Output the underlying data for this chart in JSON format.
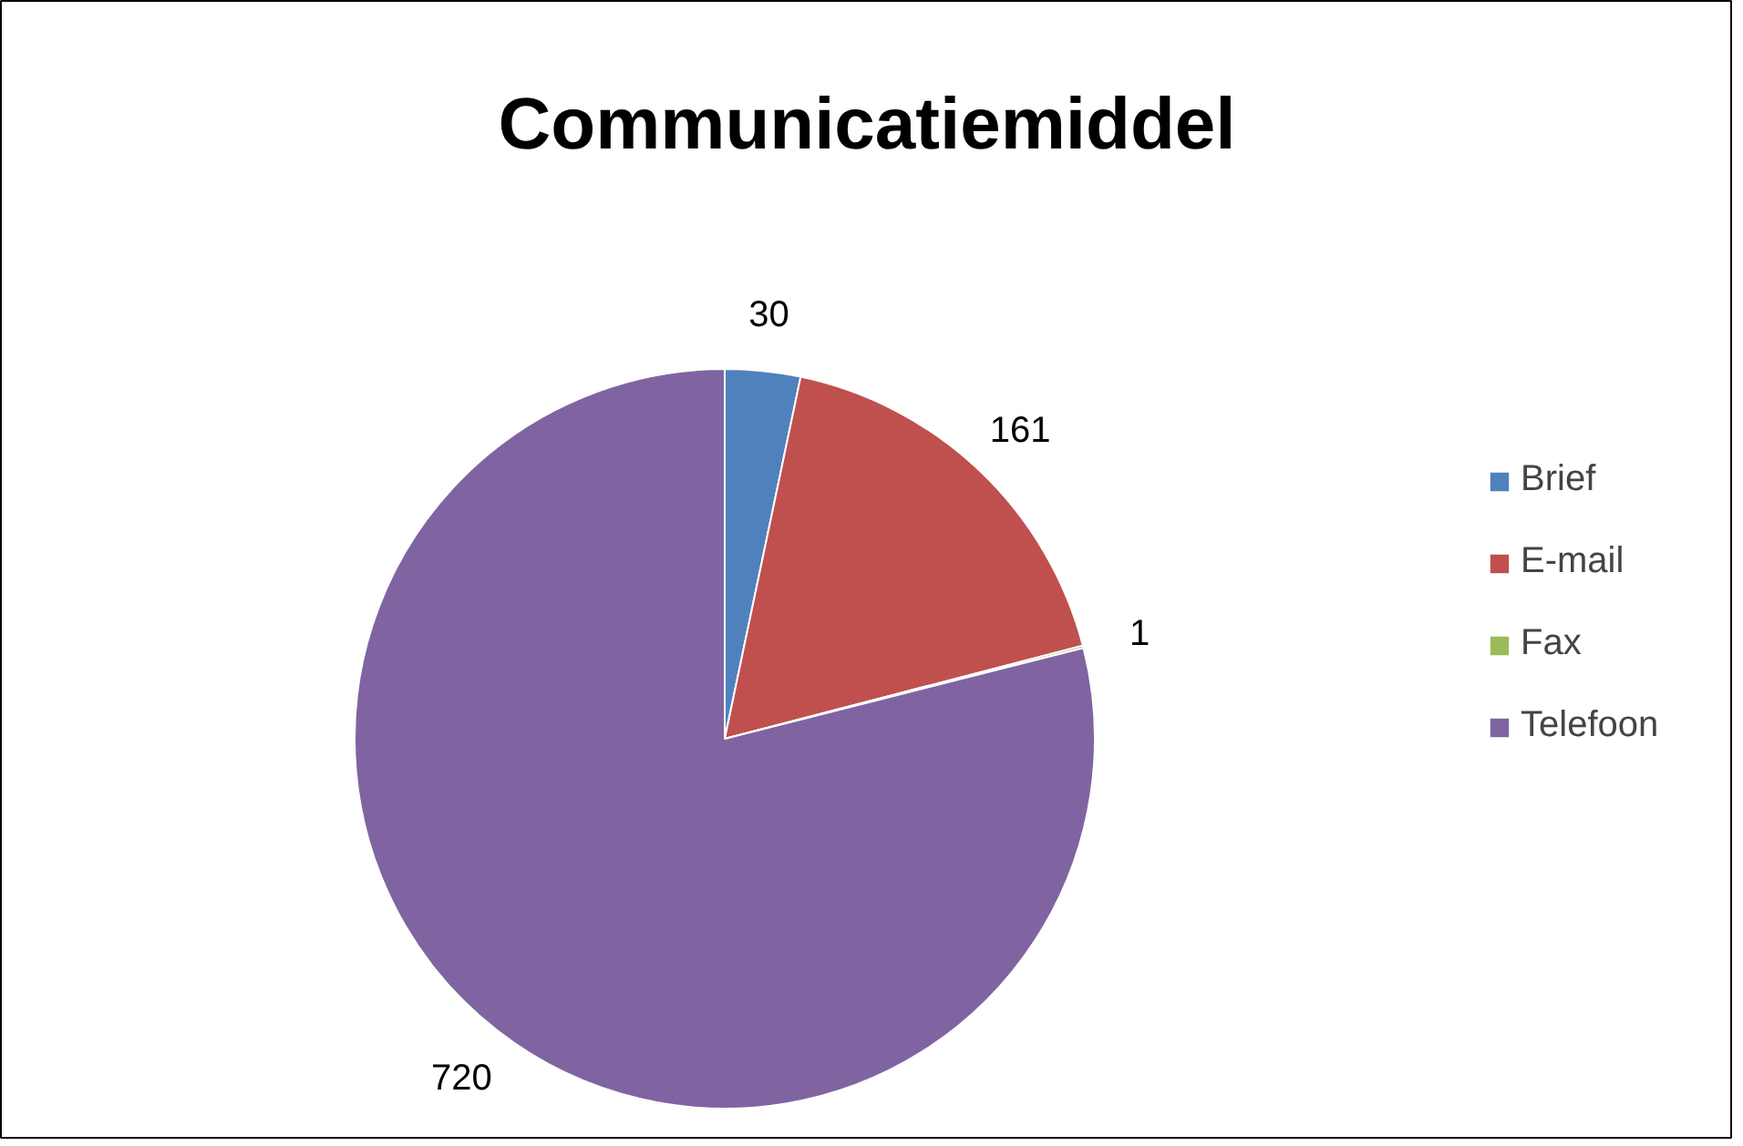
{
  "chart_data": {
    "type": "pie",
    "title": "Communicatiemiddel",
    "categories": [
      "Brief",
      "E-mail",
      "Fax",
      "Telefoon"
    ],
    "values": [
      30,
      161,
      1,
      720
    ],
    "colors": [
      "#4f81bd",
      "#c0504d",
      "#9bbb59",
      "#8064a2"
    ],
    "data_labels": true,
    "legend": "right"
  }
}
